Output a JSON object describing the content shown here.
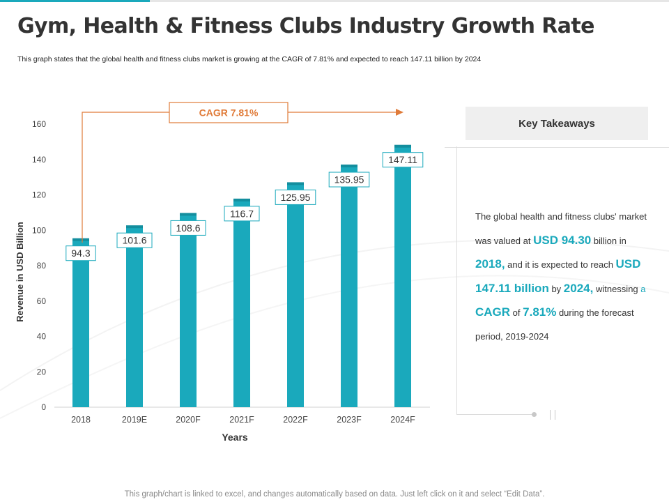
{
  "title": "Gym, Health & Fitness Clubs Industry Growth Rate",
  "subtitle": "This graph states that the global health and fitness clubs market is growing at the CAGR of 7.81%  and expected to reach 147.11 billion by 2024",
  "chart_data": {
    "type": "bar",
    "categories": [
      "2018",
      "2019E",
      "2020F",
      "2021F",
      "2022F",
      "2023F",
      "2024F"
    ],
    "values": [
      94.3,
      101.6,
      108.6,
      116.7,
      125.95,
      135.95,
      147.11
    ],
    "value_labels": [
      "94.3",
      "101.6",
      "108.6",
      "116.7",
      "125.95",
      "135.95",
      "147.11"
    ],
    "xlabel": "Years",
    "ylabel": "Revenue in USD Billion",
    "ylim": [
      0,
      160
    ],
    "yticks": [
      "0",
      "20",
      "40",
      "60",
      "80",
      "100",
      "120",
      "140",
      "160"
    ],
    "grid": false,
    "bar_color": "#1aa9bc",
    "annotation": {
      "text": "CAGR 7.81%",
      "color": "#e07b39"
    }
  },
  "takeaways": {
    "header": "Key Takeaways",
    "t1": "The global health and fitness clubs' market was valued at ",
    "h1": "USD 94.30",
    "t2": " billion in ",
    "h2": "2018,",
    "t3": " and it is expected to reach ",
    "h3": "USD 147.11 billion",
    "t4": " by ",
    "h4": "2024,",
    "t5": " witnessing ",
    "a": "a",
    "t6": " ",
    "h5": "CAGR",
    "t7": " of ",
    "h6": "7.81%",
    "t8": " during the forecast period, 2019-2024"
  },
  "footer": "This graph/chart is linked to excel, and changes automatically based on data. Just left click on it and select “Edit Data”."
}
